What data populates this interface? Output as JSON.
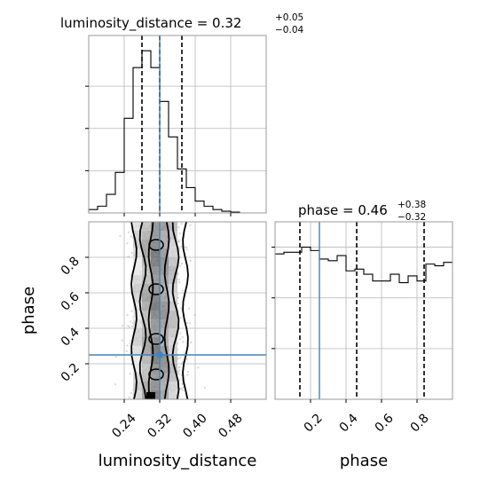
{
  "chart_data": {
    "type": "corner",
    "truth_color": "#4682b4",
    "hist_color": "#000000",
    "grid": true,
    "parameters": [
      {
        "name": "luminosity_distance",
        "xlabel": "luminosity_distance",
        "truth": 0.32,
        "range": [
          0.16,
          0.56
        ],
        "ticks": [
          0.24,
          0.32,
          0.4,
          0.48
        ],
        "tick_labels": [
          "0.24",
          "0.32",
          "0.40",
          "0.48"
        ],
        "title": {
          "main": "luminosity_distance = 0.32",
          "plus": "+0.05",
          "minus": "−0.04"
        },
        "quantiles": [
          0.28,
          0.32,
          0.37
        ],
        "hist": {
          "bin_width": 0.02,
          "x": [
            0.16,
            0.18,
            0.2,
            0.22,
            0.24,
            0.26,
            0.28,
            0.3,
            0.32,
            0.34,
            0.36,
            0.38,
            0.4,
            0.42,
            0.44,
            0.46,
            0.48,
            0.5
          ],
          "counts": [
            0.02,
            0.04,
            0.11,
            0.24,
            0.56,
            0.86,
            0.96,
            0.86,
            0.66,
            0.45,
            0.26,
            0.15,
            0.07,
            0.04,
            0.02,
            0.01,
            0.005,
            0.0
          ]
        }
      },
      {
        "name": "phase",
        "xlabel": "phase",
        "ylabel": "phase",
        "truth": 0.25,
        "range": [
          0.0,
          1.0
        ],
        "ticks": [
          0.2,
          0.4,
          0.6,
          0.8
        ],
        "tick_labels": [
          "0.2",
          "0.4",
          "0.6",
          "0.8"
        ],
        "title": {
          "main": "phase = 0.46",
          "plus": "+0.38",
          "minus": "−0.32"
        },
        "quantiles": [
          0.14,
          0.46,
          0.84
        ],
        "hist": {
          "bin_width": 0.05,
          "x": [
            0.0,
            0.05,
            0.1,
            0.15,
            0.2,
            0.25,
            0.3,
            0.35,
            0.4,
            0.45,
            0.5,
            0.55,
            0.6,
            0.65,
            0.7,
            0.75,
            0.8,
            0.85,
            0.9,
            0.95
          ],
          "counts": [
            0.86,
            0.87,
            0.87,
            0.9,
            0.88,
            0.83,
            0.82,
            0.85,
            0.76,
            0.77,
            0.74,
            0.7,
            0.7,
            0.74,
            0.69,
            0.73,
            0.7,
            0.8,
            0.79,
            0.81
          ]
        }
      }
    ]
  }
}
